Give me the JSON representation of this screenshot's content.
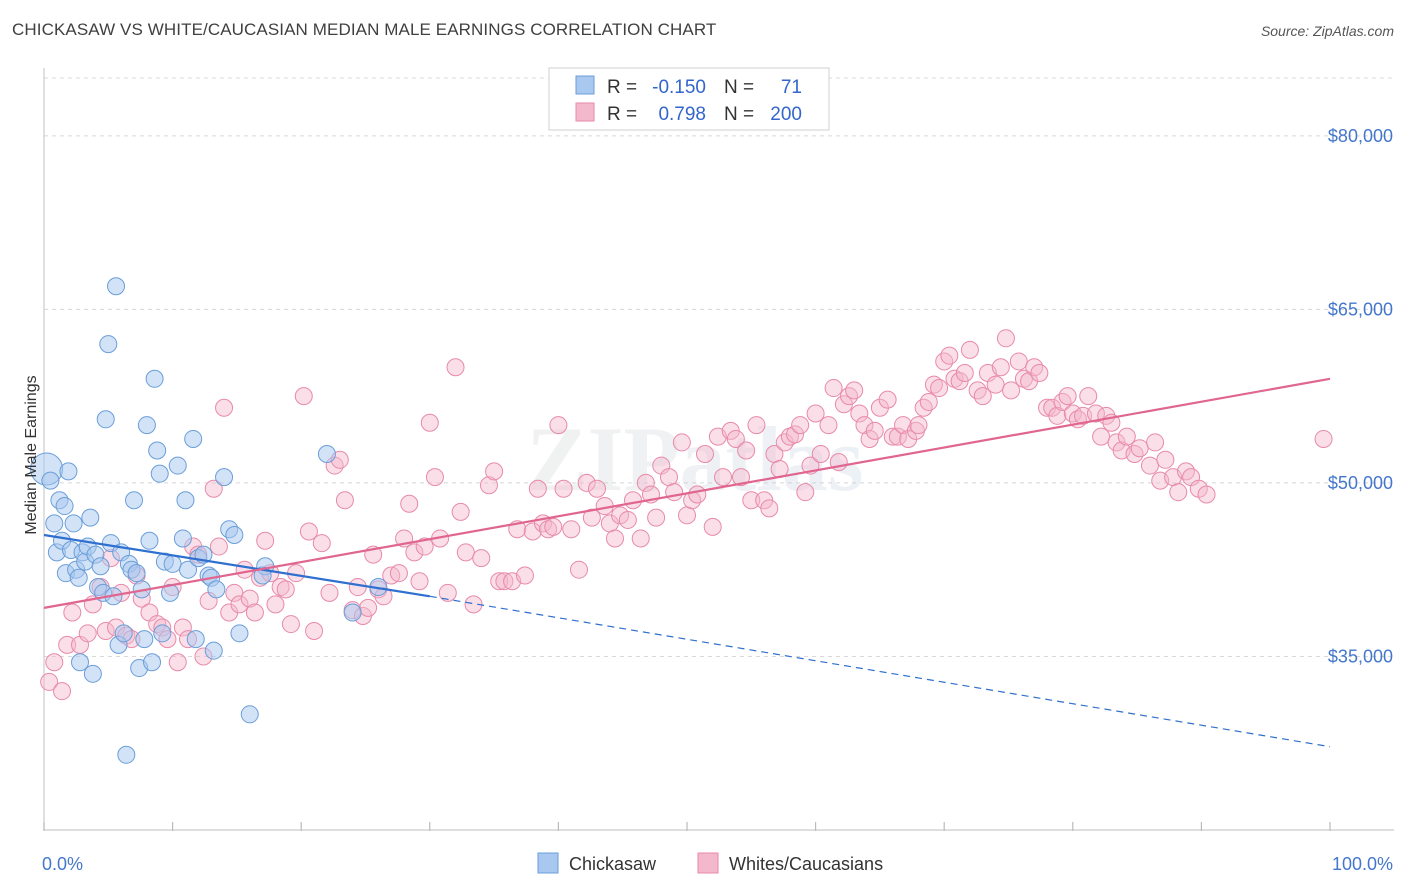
{
  "header": {
    "title": "CHICKASAW VS WHITE/CAUCASIAN MEDIAN MALE EARNINGS CORRELATION CHART",
    "source": "Source: ZipAtlas.com"
  },
  "watermark": "ZIPatlas",
  "legend_box": {
    "rows": [
      {
        "r_label": "R =",
        "r_value": "-0.150",
        "n_label": "N =",
        "n_value": "71",
        "color": "#a8c8f0"
      },
      {
        "r_label": "R =",
        "r_value": "0.798",
        "n_label": "N =",
        "n_value": "200",
        "color": "#f4b8cc"
      }
    ]
  },
  "bottom_legend": [
    {
      "label": "Chickasaw",
      "color": "#a8c8f0"
    },
    {
      "label": "Whites/Caucasians",
      "color": "#f4b8cc"
    }
  ],
  "colors": {
    "chickasaw_fill": "#a8c8f0",
    "chickasaw_stroke": "#6a9ed8",
    "chickasaw_line": "#2f6fcf",
    "white_fill": "#f4b8cc",
    "white_stroke": "#e88aaa",
    "white_line": "#e06690",
    "tick_text": "#4477cc",
    "grid": "#d8d8d8"
  },
  "chart_data": {
    "type": "scatter",
    "title": "CHICKASAW VS WHITE/CAUCASIAN MEDIAN MALE EARNINGS CORRELATION CHART",
    "xlabel": "",
    "ylabel": "Median Male Earnings",
    "xlim": [
      0,
      100
    ],
    "ylim": [
      20000,
      85000
    ],
    "x_tick_labels": [
      "0.0%",
      "100.0%"
    ],
    "y_ticks": [
      35000,
      50000,
      65000,
      80000
    ],
    "y_tick_labels": [
      "$35,000",
      "$50,000",
      "$65,000",
      "$80,000"
    ],
    "grid": "horizontal dashed",
    "legend_position": "top-center",
    "series": [
      {
        "name": "Chickasaw",
        "R": -0.15,
        "N": 71,
        "trend": {
          "x": [
            0,
            30
          ],
          "y": [
            45500,
            40200
          ],
          "dashed_extension_to_x": 100,
          "dashed_end_y": 27200
        },
        "points": [
          [
            0.2,
            51.2
          ],
          [
            0.5,
            50.2
          ],
          [
            0.8,
            46.5
          ],
          [
            1.0,
            44.0
          ],
          [
            1.2,
            48.5
          ],
          [
            1.4,
            45.0
          ],
          [
            1.6,
            48.0
          ],
          [
            1.7,
            42.2
          ],
          [
            1.9,
            51.0
          ],
          [
            2.1,
            44.2
          ],
          [
            2.3,
            46.5
          ],
          [
            2.5,
            42.5
          ],
          [
            2.7,
            41.8
          ],
          [
            2.8,
            34.5
          ],
          [
            3.0,
            44.0
          ],
          [
            3.2,
            43.2
          ],
          [
            3.4,
            44.5
          ],
          [
            3.6,
            47.0
          ],
          [
            3.8,
            33.5
          ],
          [
            4.0,
            43.8
          ],
          [
            4.2,
            41.0
          ],
          [
            4.4,
            42.8
          ],
          [
            4.6,
            40.5
          ],
          [
            4.8,
            55.5
          ],
          [
            5.0,
            62.0
          ],
          [
            5.2,
            44.8
          ],
          [
            5.4,
            40.2
          ],
          [
            5.6,
            67.0
          ],
          [
            5.8,
            36.0
          ],
          [
            6.0,
            44.0
          ],
          [
            6.2,
            37.0
          ],
          [
            6.4,
            26.5
          ],
          [
            6.6,
            43.0
          ],
          [
            6.8,
            42.5
          ],
          [
            7.0,
            48.5
          ],
          [
            7.2,
            42.2
          ],
          [
            7.4,
            34.0
          ],
          [
            7.6,
            40.8
          ],
          [
            7.8,
            36.5
          ],
          [
            8.0,
            55.0
          ],
          [
            8.2,
            45.0
          ],
          [
            8.4,
            34.5
          ],
          [
            8.6,
            59.0
          ],
          [
            8.8,
            52.8
          ],
          [
            9.0,
            50.8
          ],
          [
            9.2,
            37.0
          ],
          [
            9.4,
            43.2
          ],
          [
            9.8,
            40.5
          ],
          [
            10.0,
            43.0
          ],
          [
            10.4,
            51.5
          ],
          [
            10.8,
            45.2
          ],
          [
            11.0,
            48.5
          ],
          [
            11.2,
            42.5
          ],
          [
            11.6,
            53.8
          ],
          [
            11.8,
            36.5
          ],
          [
            12.0,
            43.5
          ],
          [
            12.4,
            43.8
          ],
          [
            12.8,
            42.0
          ],
          [
            13.0,
            41.8
          ],
          [
            13.2,
            35.5
          ],
          [
            13.4,
            40.8
          ],
          [
            14.0,
            50.5
          ],
          [
            14.4,
            46.0
          ],
          [
            14.8,
            45.5
          ],
          [
            15.2,
            37.0
          ],
          [
            16.0,
            30.0
          ],
          [
            17.2,
            42.8
          ],
          [
            22.0,
            52.5
          ],
          [
            24.0,
            38.8
          ],
          [
            26.0,
            41.0
          ],
          [
            17.0,
            42.0
          ]
        ]
      },
      {
        "name": "Whites/Caucasians",
        "R": 0.798,
        "N": 200,
        "trend": {
          "x": [
            0,
            100
          ],
          "y": [
            39200,
            59000
          ]
        },
        "points": [
          [
            0.4,
            32.8
          ],
          [
            0.8,
            34.5
          ],
          [
            1.4,
            32.0
          ],
          [
            1.8,
            36.0
          ],
          [
            2.2,
            38.8
          ],
          [
            2.8,
            36.0
          ],
          [
            3.4,
            37.0
          ],
          [
            3.8,
            39.5
          ],
          [
            4.4,
            41.0
          ],
          [
            4.8,
            37.2
          ],
          [
            5.2,
            43.5
          ],
          [
            5.6,
            37.5
          ],
          [
            6.0,
            40.5
          ],
          [
            6.4,
            36.8
          ],
          [
            6.8,
            36.5
          ],
          [
            7.2,
            42.0
          ],
          [
            7.6,
            40.0
          ],
          [
            8.2,
            38.8
          ],
          [
            8.8,
            37.8
          ],
          [
            9.2,
            37.5
          ],
          [
            9.6,
            36.5
          ],
          [
            10.0,
            41.0
          ],
          [
            10.4,
            34.5
          ],
          [
            10.8,
            37.5
          ],
          [
            11.2,
            36.5
          ],
          [
            11.6,
            44.5
          ],
          [
            12.0,
            43.8
          ],
          [
            12.4,
            35.0
          ],
          [
            12.8,
            39.8
          ],
          [
            13.2,
            49.5
          ],
          [
            13.6,
            44.5
          ],
          [
            14.0,
            56.5
          ],
          [
            14.4,
            38.8
          ],
          [
            14.8,
            40.5
          ],
          [
            15.2,
            39.5
          ],
          [
            15.6,
            42.5
          ],
          [
            16.0,
            40.0
          ],
          [
            16.4,
            38.8
          ],
          [
            16.8,
            41.8
          ],
          [
            17.2,
            45.0
          ],
          [
            17.6,
            42.2
          ],
          [
            18.0,
            39.5
          ],
          [
            18.4,
            41.0
          ],
          [
            18.8,
            40.8
          ],
          [
            19.2,
            37.8
          ],
          [
            19.6,
            42.2
          ],
          [
            20.2,
            57.5
          ],
          [
            20.6,
            45.8
          ],
          [
            21.0,
            37.2
          ],
          [
            21.6,
            44.8
          ],
          [
            22.2,
            40.5
          ],
          [
            22.6,
            51.5
          ],
          [
            23.0,
            52.0
          ],
          [
            23.4,
            48.5
          ],
          [
            24.0,
            39.0
          ],
          [
            24.4,
            41.0
          ],
          [
            24.8,
            38.5
          ],
          [
            25.2,
            39.2
          ],
          [
            25.6,
            43.8
          ],
          [
            26.0,
            40.8
          ],
          [
            26.4,
            40.2
          ],
          [
            27.0,
            42.0
          ],
          [
            27.6,
            42.2
          ],
          [
            28.0,
            45.2
          ],
          [
            28.4,
            48.2
          ],
          [
            28.8,
            44.0
          ],
          [
            29.2,
            41.5
          ],
          [
            29.6,
            44.5
          ],
          [
            30.0,
            55.2
          ],
          [
            30.4,
            50.5
          ],
          [
            30.8,
            45.2
          ],
          [
            31.4,
            40.5
          ],
          [
            32.0,
            60.0
          ],
          [
            32.4,
            47.5
          ],
          [
            32.8,
            44.0
          ],
          [
            33.4,
            39.5
          ],
          [
            34.0,
            43.5
          ],
          [
            34.6,
            49.8
          ],
          [
            35.0,
            51.0
          ],
          [
            35.4,
            41.5
          ],
          [
            35.8,
            41.5
          ],
          [
            36.4,
            41.5
          ],
          [
            36.8,
            46.0
          ],
          [
            37.4,
            42.0
          ],
          [
            38.0,
            45.8
          ],
          [
            38.4,
            49.5
          ],
          [
            38.8,
            46.5
          ],
          [
            39.2,
            46.0
          ],
          [
            39.6,
            46.2
          ],
          [
            40.0,
            55.0
          ],
          [
            40.4,
            49.5
          ],
          [
            41.0,
            46.0
          ],
          [
            41.6,
            42.5
          ],
          [
            42.2,
            50.0
          ],
          [
            42.6,
            47.0
          ],
          [
            43.0,
            49.5
          ],
          [
            43.6,
            48.0
          ],
          [
            44.0,
            46.5
          ],
          [
            44.4,
            45.2
          ],
          [
            44.8,
            47.2
          ],
          [
            45.4,
            46.8
          ],
          [
            45.8,
            48.5
          ],
          [
            46.4,
            45.2
          ],
          [
            46.8,
            50.0
          ],
          [
            47.2,
            49.0
          ],
          [
            47.6,
            47.0
          ],
          [
            48.0,
            51.5
          ],
          [
            48.6,
            50.5
          ],
          [
            49.0,
            49.2
          ],
          [
            49.6,
            53.5
          ],
          [
            50.0,
            47.2
          ],
          [
            50.4,
            48.5
          ],
          [
            50.8,
            49.0
          ],
          [
            51.4,
            52.5
          ],
          [
            52.0,
            46.2
          ],
          [
            52.4,
            54.0
          ],
          [
            52.8,
            50.5
          ],
          [
            53.4,
            54.5
          ],
          [
            53.8,
            53.8
          ],
          [
            54.2,
            50.5
          ],
          [
            54.6,
            52.8
          ],
          [
            55.0,
            48.5
          ],
          [
            55.4,
            55.0
          ],
          [
            56.0,
            48.5
          ],
          [
            56.4,
            47.8
          ],
          [
            56.8,
            52.5
          ],
          [
            57.2,
            51.2
          ],
          [
            57.6,
            53.5
          ],
          [
            58.0,
            54.0
          ],
          [
            58.4,
            54.2
          ],
          [
            58.8,
            55.0
          ],
          [
            59.2,
            49.2
          ],
          [
            59.6,
            51.5
          ],
          [
            60.0,
            56.0
          ],
          [
            60.4,
            52.5
          ],
          [
            61.0,
            55.0
          ],
          [
            61.4,
            58.2
          ],
          [
            61.8,
            51.8
          ],
          [
            62.2,
            56.8
          ],
          [
            62.6,
            57.5
          ],
          [
            63.0,
            58.0
          ],
          [
            63.4,
            56.0
          ],
          [
            63.8,
            55.0
          ],
          [
            64.2,
            53.8
          ],
          [
            64.6,
            54.5
          ],
          [
            65.0,
            56.5
          ],
          [
            65.6,
            57.2
          ],
          [
            66.0,
            54.0
          ],
          [
            66.4,
            54.0
          ],
          [
            66.8,
            55.0
          ],
          [
            67.2,
            53.8
          ],
          [
            67.8,
            54.5
          ],
          [
            68.0,
            55.0
          ],
          [
            68.4,
            56.5
          ],
          [
            68.8,
            57.0
          ],
          [
            69.2,
            58.5
          ],
          [
            69.6,
            58.2
          ],
          [
            70.0,
            60.5
          ],
          [
            70.4,
            61.0
          ],
          [
            70.8,
            59.0
          ],
          [
            71.2,
            58.8
          ],
          [
            71.6,
            59.5
          ],
          [
            72.0,
            61.5
          ],
          [
            72.6,
            58.0
          ],
          [
            73.0,
            57.5
          ],
          [
            73.4,
            59.5
          ],
          [
            74.0,
            58.5
          ],
          [
            74.4,
            60.0
          ],
          [
            74.8,
            62.5
          ],
          [
            75.2,
            58.0
          ],
          [
            75.8,
            60.5
          ],
          [
            76.2,
            59.0
          ],
          [
            76.6,
            58.8
          ],
          [
            77.0,
            60.0
          ],
          [
            77.4,
            59.5
          ],
          [
            78.0,
            56.5
          ],
          [
            78.4,
            56.5
          ],
          [
            78.8,
            55.8
          ],
          [
            79.2,
            57.0
          ],
          [
            79.6,
            57.5
          ],
          [
            80.0,
            56.0
          ],
          [
            80.4,
            55.5
          ],
          [
            80.8,
            55.8
          ],
          [
            81.2,
            57.5
          ],
          [
            81.8,
            56.0
          ],
          [
            82.2,
            54.0
          ],
          [
            82.6,
            55.8
          ],
          [
            83.0,
            55.2
          ],
          [
            83.4,
            53.5
          ],
          [
            83.8,
            52.8
          ],
          [
            84.2,
            54.0
          ],
          [
            84.8,
            52.5
          ],
          [
            85.2,
            53.0
          ],
          [
            86.0,
            51.5
          ],
          [
            86.4,
            53.5
          ],
          [
            86.8,
            50.2
          ],
          [
            87.2,
            52.0
          ],
          [
            87.8,
            50.5
          ],
          [
            88.2,
            49.2
          ],
          [
            88.8,
            51.0
          ],
          [
            89.2,
            50.5
          ],
          [
            89.8,
            49.5
          ],
          [
            90.4,
            49.0
          ],
          [
            99.5,
            53.8
          ]
        ]
      }
    ]
  }
}
